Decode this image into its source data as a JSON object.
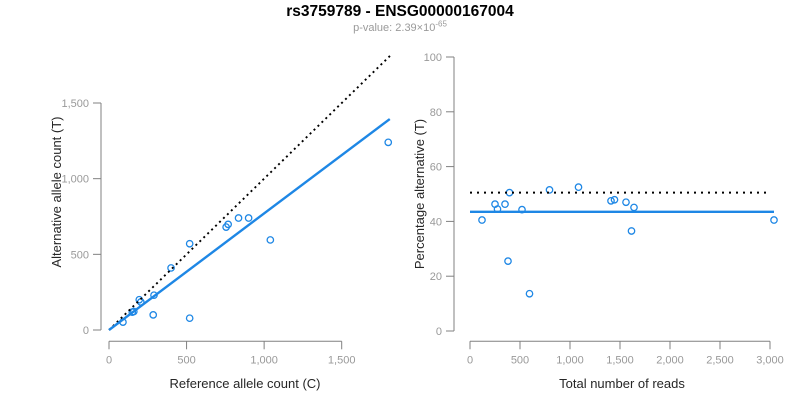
{
  "header": {
    "title": "rs3759789 - ENSG00000167004",
    "subtitle_text": "p-value: 2.39×10",
    "subtitle_exponent": "-65"
  },
  "colors": {
    "accent_blue": "#1e87e5",
    "dotted_line": "#000000",
    "axis_line": "#808080",
    "tick_label": "#999999",
    "axis_title": "#262626",
    "subtitle": "#9a9a9a"
  },
  "chart_data": [
    {
      "type": "scatter",
      "title": "",
      "xlabel": "Reference allele count (C)",
      "ylabel": "Alternative allele count (T)",
      "xlim": [
        0,
        1870
      ],
      "ylim": [
        0,
        1815
      ],
      "xticks": [
        0,
        500,
        1000,
        1500
      ],
      "xtick_labels": [
        "0",
        "500",
        "1,000",
        "1,500"
      ],
      "yticks": [
        0,
        500,
        1000,
        1500
      ],
      "ytick_labels": [
        "0",
        "500",
        "1,000",
        "1,500"
      ],
      "grid": false,
      "legend": "none",
      "point_style": "open-circle",
      "point_color": "#1e87e5",
      "points": [
        [
          90,
          52
        ],
        [
          150,
          118
        ],
        [
          160,
          122
        ],
        [
          205,
          185
        ],
        [
          195,
          200
        ],
        [
          290,
          230
        ],
        [
          285,
          100
        ],
        [
          400,
          410
        ],
        [
          520,
          570
        ],
        [
          520,
          78
        ],
        [
          755,
          680
        ],
        [
          768,
          698
        ],
        [
          835,
          740
        ],
        [
          900,
          740
        ],
        [
          1040,
          595
        ],
        [
          1800,
          1240
        ]
      ],
      "lines": [
        {
          "name": "identity-line",
          "style": "dotted",
          "color": "#000000",
          "from": [
            0,
            0
          ],
          "to": [
            1815,
            1815
          ]
        },
        {
          "name": "fit-line",
          "style": "solid",
          "color": "#1e87e5",
          "from": [
            0,
            0
          ],
          "to": [
            1810,
            1394
          ]
        }
      ]
    },
    {
      "type": "scatter",
      "title": "",
      "xlabel": "Total number of reads",
      "ylabel": "Percentage alternative (T)",
      "xlim": [
        0,
        3150
      ],
      "ylim": [
        0,
        100
      ],
      "xticks": [
        0,
        500,
        1000,
        1500,
        2000,
        2500,
        3000
      ],
      "xtick_labels": [
        "0",
        "500",
        "1,000",
        "1,500",
        "2,000",
        "2,500",
        "3,000"
      ],
      "yticks": [
        0,
        20,
        40,
        60,
        80,
        100
      ],
      "ytick_labels": [
        "0",
        "20",
        "40",
        "60",
        "80",
        "100"
      ],
      "grid": false,
      "legend": "none",
      "point_style": "open-circle",
      "point_color": "#1e87e5",
      "points": [
        [
          120,
          40.5
        ],
        [
          250,
          46.3
        ],
        [
          275,
          44.5
        ],
        [
          350,
          46.3
        ],
        [
          395,
          50.5
        ],
        [
          380,
          25.5
        ],
        [
          520,
          44.3
        ],
        [
          595,
          13.6
        ],
        [
          795,
          51.5
        ],
        [
          1085,
          52.5
        ],
        [
          1410,
          47.5
        ],
        [
          1445,
          47.9
        ],
        [
          1560,
          47.0
        ],
        [
          1640,
          45.1
        ],
        [
          1615,
          36.5
        ],
        [
          3040,
          40.5
        ]
      ],
      "lines": [
        {
          "name": "expected-50pct-line",
          "style": "dotted",
          "color": "#000000",
          "from": [
            0,
            50.5
          ],
          "to": [
            2980,
            50.5
          ]
        },
        {
          "name": "mean-percentage-line",
          "style": "solid",
          "color": "#1e87e5",
          "from": [
            0,
            43.5
          ],
          "to": [
            3040,
            43.5
          ]
        }
      ]
    }
  ]
}
